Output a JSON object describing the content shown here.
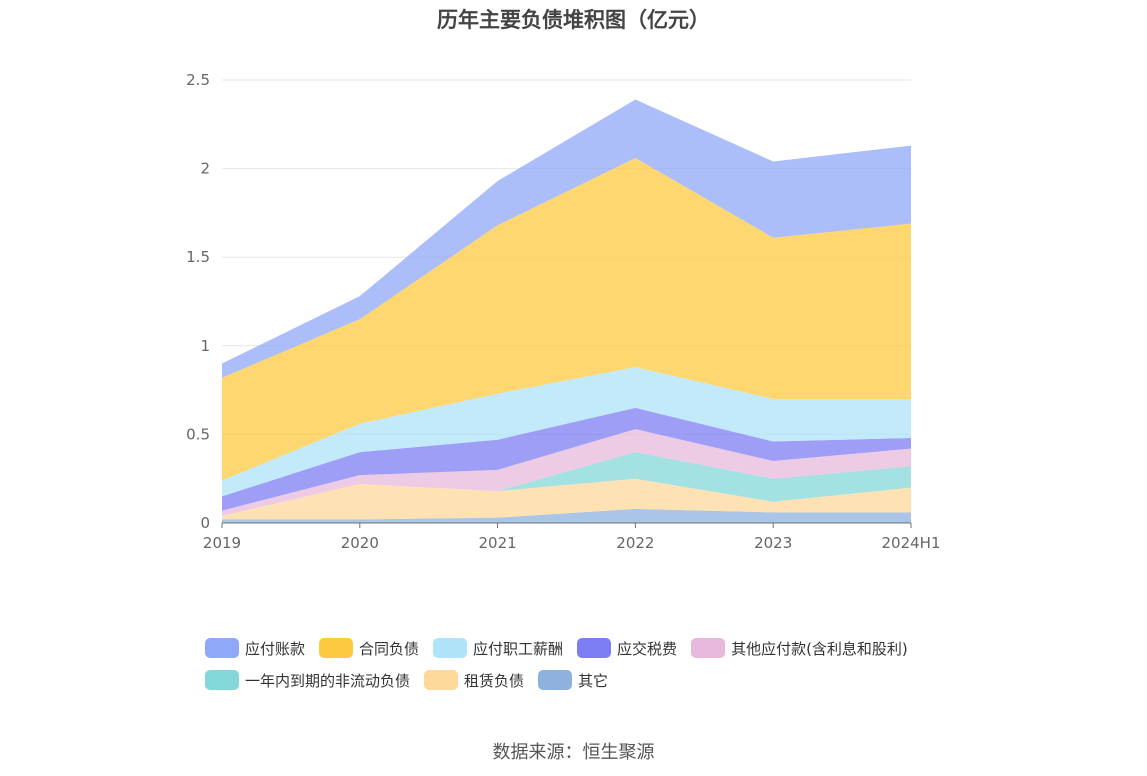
{
  "title": "历年主要负债堆积图（亿元）",
  "source": "数据来源：恒生聚源",
  "colors": {
    "应付账款": "#8fa8f8",
    "合同负债": "#fdc940",
    "应付职工薪酬": "#aee3f8",
    "应交税费": "#7d7ef4",
    "其他应付款(含利息和股利)": "#e8b9dc",
    "一年内到期的非流动负债": "#84d7d8",
    "租赁负债": "#fdd89a",
    "其它": "#8fb1de"
  },
  "chart_data": {
    "type": "area",
    "stacked": true,
    "title": "历年主要负债堆积图（亿元）",
    "categories": [
      "2019",
      "2020",
      "2021",
      "2022",
      "2023",
      "2024H1"
    ],
    "ylim": [
      0,
      2.5
    ],
    "yticks": [
      "0",
      "0.5",
      "1",
      "1.5",
      "2",
      "2.5"
    ],
    "grid": true,
    "legend_position": "bottom",
    "series": [
      {
        "name": "其它",
        "values": [
          0.02,
          0.02,
          0.03,
          0.08,
          0.06,
          0.06
        ]
      },
      {
        "name": "租赁负债",
        "values": [
          0.02,
          0.2,
          0.15,
          0.17,
          0.06,
          0.14
        ]
      },
      {
        "name": "一年内到期的非流动负债",
        "values": [
          0.0,
          0.0,
          0.0,
          0.15,
          0.13,
          0.12
        ]
      },
      {
        "name": "其他应付款(含利息和股利)",
        "values": [
          0.03,
          0.05,
          0.12,
          0.13,
          0.1,
          0.1
        ]
      },
      {
        "name": "应交税费",
        "values": [
          0.08,
          0.13,
          0.17,
          0.12,
          0.11,
          0.06
        ]
      },
      {
        "name": "应付职工薪酬",
        "values": [
          0.09,
          0.16,
          0.26,
          0.23,
          0.24,
          0.22
        ]
      },
      {
        "name": "合同负债",
        "values": [
          0.58,
          0.59,
          0.95,
          1.18,
          0.91,
          0.99
        ]
      },
      {
        "name": "应付账款",
        "values": [
          0.08,
          0.13,
          0.25,
          0.33,
          0.43,
          0.44
        ]
      }
    ]
  },
  "legend_order": [
    "应付账款",
    "合同负债",
    "应付职工薪酬",
    "应交税费",
    "其他应付款(含利息和股利)",
    "一年内到期的非流动负债",
    "租赁负债",
    "其它"
  ]
}
